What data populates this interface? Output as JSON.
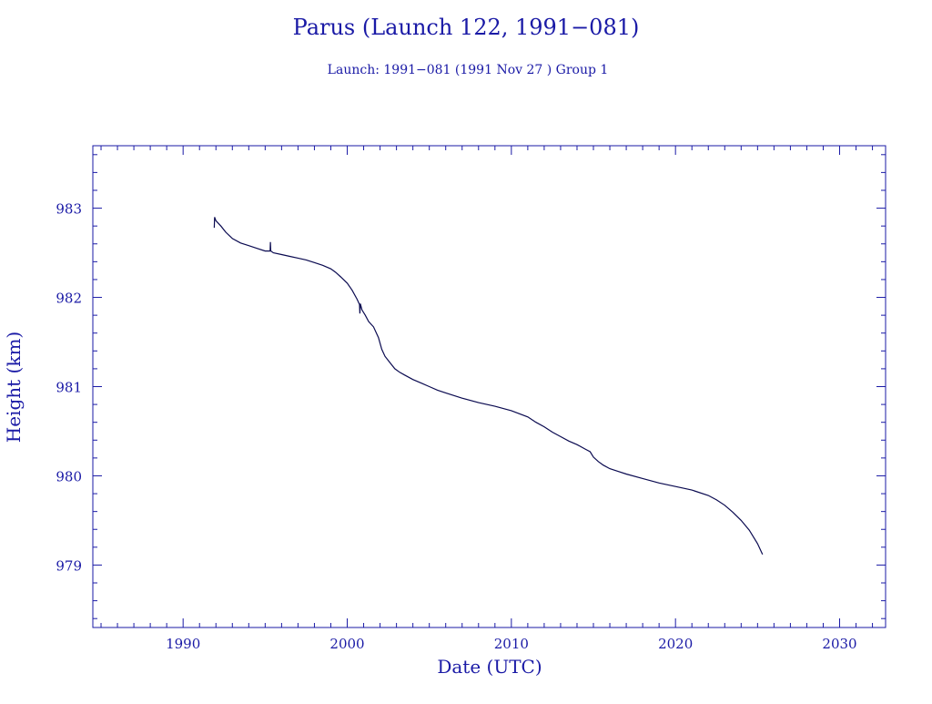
{
  "colors": {
    "text": "#1a1aa6",
    "axes": "#1a1aa6",
    "series": "#0a0a50",
    "background": "#ffffff"
  },
  "chart_data": {
    "type": "line",
    "title": "Parus (Launch 122, 1991−081)",
    "subtitle": "Launch: 1991−081  (1991 Nov 27 )  Group 1",
    "xlabel": "Date (UTC)",
    "ylabel": "Height (km)",
    "xlim": [
      1984.5,
      2032.8
    ],
    "ylim": [
      978.3,
      983.7
    ],
    "x_ticks": [
      1990,
      2000,
      2010,
      2020,
      2030
    ],
    "y_ticks": [
      979,
      980,
      981,
      982,
      983
    ],
    "x_minor_step": 1,
    "y_minor_step": 0.2,
    "grid": false,
    "series": [
      {
        "x": [
          1991.9,
          1991.92,
          1992.0,
          1992.3,
          1992.6,
          1993.0,
          1993.5,
          1994.0,
          1994.5,
          1995.0,
          1995.3,
          1995.32,
          1995.34,
          1995.5,
          1996.0,
          1996.5,
          1997.0,
          1997.5,
          1998.0,
          1998.5,
          1999.0,
          1999.3,
          1999.6,
          2000.0,
          2000.3,
          2000.6,
          2000.75,
          2000.77,
          2000.8,
          2000.9,
          2001.1,
          2001.3,
          2001.6,
          2001.9,
          2002.1,
          2002.3,
          2002.6,
          2002.9,
          2003.2,
          2003.5,
          2004.0,
          2004.5,
          2005.0,
          2005.5,
          2006.0,
          2007.0,
          2008.0,
          2009.0,
          2010.0,
          2011.0,
          2011.5,
          2012.0,
          2012.5,
          2013.0,
          2013.5,
          2014.0,
          2014.5,
          2014.8,
          2015.0,
          2015.3,
          2015.6,
          2016.0,
          2016.5,
          2017.0,
          2018.0,
          2019.0,
          2020.0,
          2021.0,
          2022.0,
          2022.5,
          2023.0,
          2023.5,
          2024.0,
          2024.5,
          2025.0,
          2025.3
        ],
        "y": [
          982.78,
          982.9,
          982.86,
          982.8,
          982.73,
          982.66,
          982.61,
          982.58,
          982.55,
          982.52,
          982.52,
          982.62,
          982.52,
          982.5,
          982.48,
          982.46,
          982.44,
          982.42,
          982.39,
          982.36,
          982.32,
          982.28,
          982.23,
          982.16,
          982.08,
          981.98,
          981.92,
          981.82,
          981.93,
          981.86,
          981.8,
          981.73,
          981.67,
          981.55,
          981.42,
          981.34,
          981.27,
          981.2,
          981.16,
          981.13,
          981.08,
          981.04,
          981.0,
          980.96,
          980.93,
          980.87,
          980.82,
          980.78,
          980.73,
          980.66,
          980.6,
          980.55,
          980.49,
          980.44,
          980.39,
          980.35,
          980.3,
          980.27,
          980.21,
          980.16,
          980.12,
          980.08,
          980.05,
          980.02,
          979.97,
          979.92,
          979.88,
          979.84,
          979.78,
          979.73,
          979.67,
          979.59,
          979.5,
          979.39,
          979.24,
          979.12
        ]
      }
    ]
  }
}
